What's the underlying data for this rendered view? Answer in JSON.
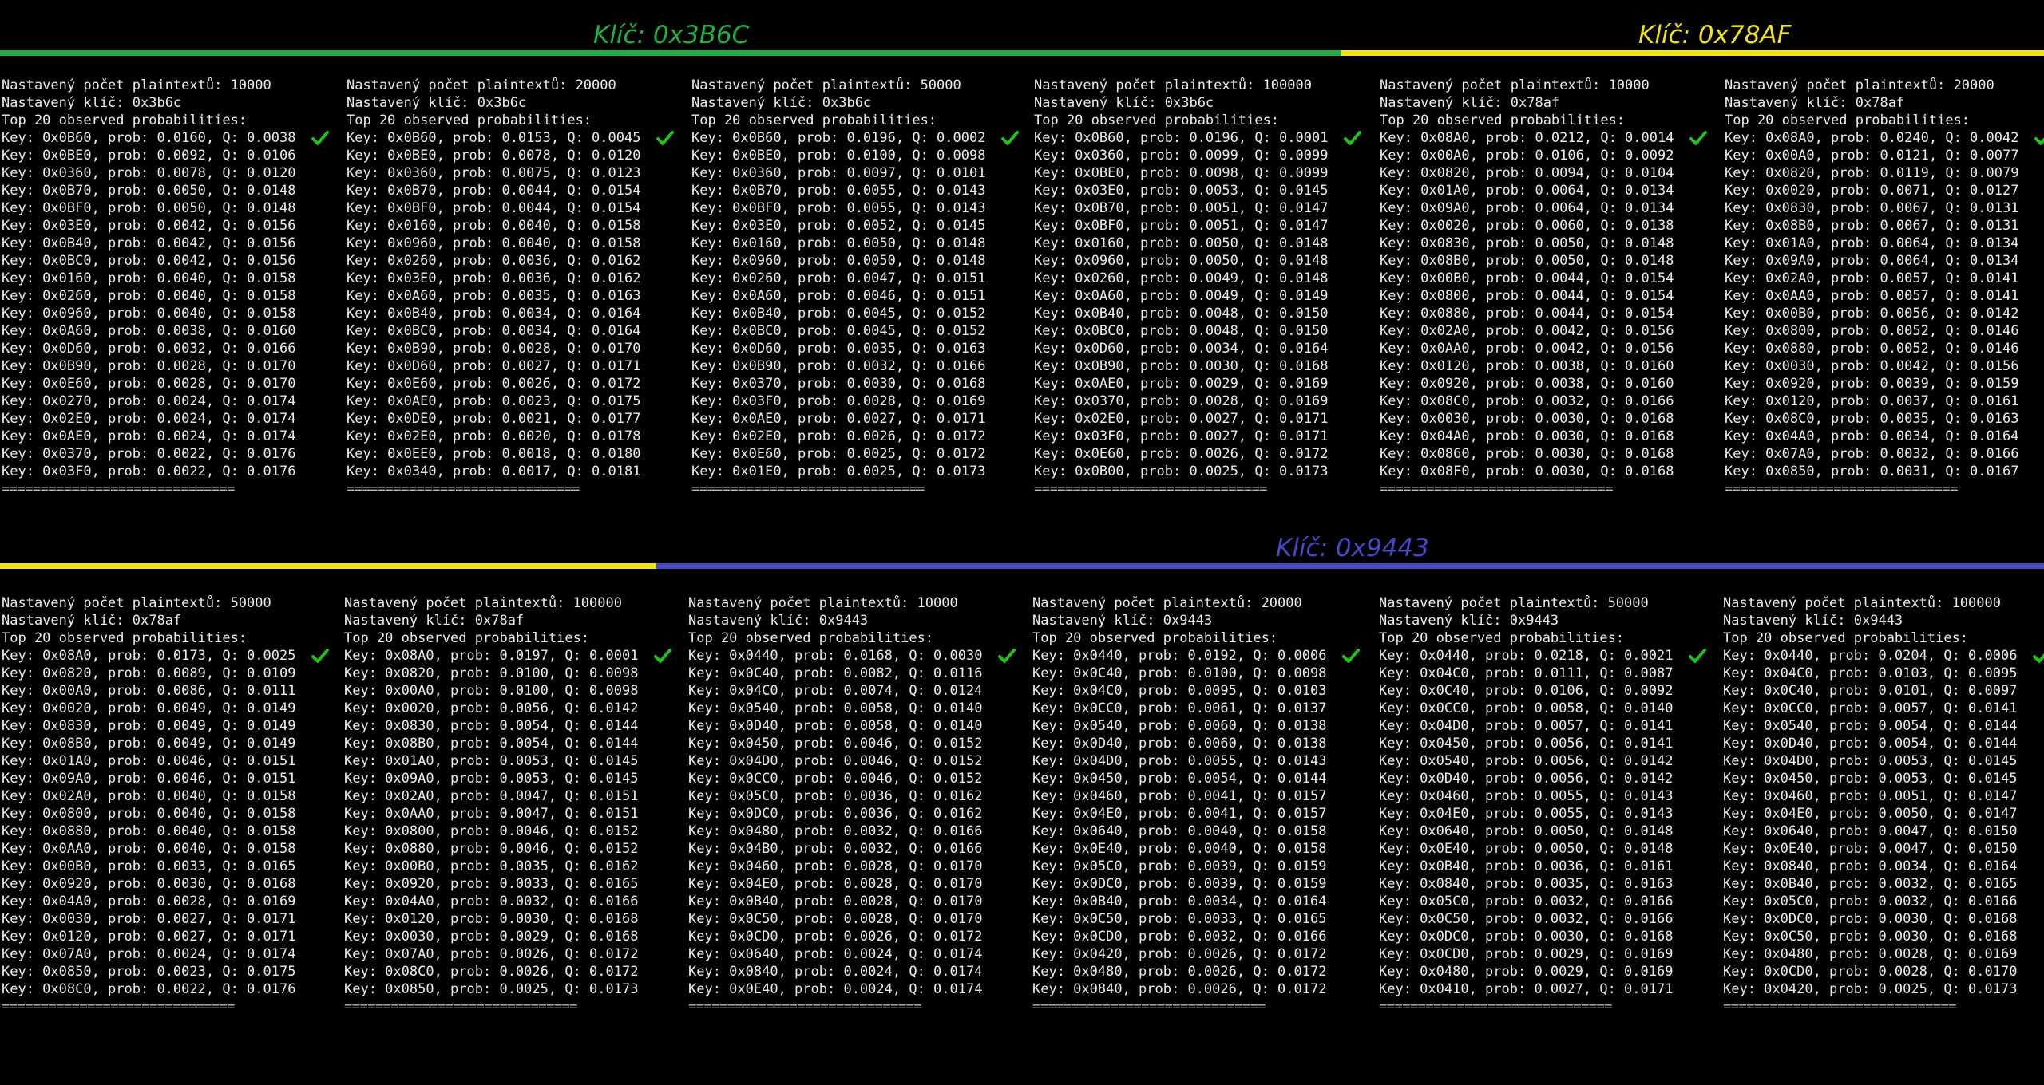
{
  "headers": [
    {
      "label": "Klíč: 0x3B6C",
      "color": "#20b040"
    },
    {
      "label": "Klíč: 0x78AF",
      "color": "#f2e21c"
    },
    {
      "label": "Klíč: 0x9443",
      "color": "#4648c8"
    }
  ],
  "colors": {
    "check": "#22c01a",
    "green": "#20b040",
    "yellow": "#f2e21c",
    "blue": "#4648c8"
  },
  "separator": "==============================",
  "panels": [
    {
      "count_line": "Nastavený počet plaintextů: 10000",
      "key_line": "Nastavený klíč: 0x3b6c",
      "top_line": "Top 20 observed probabilities:",
      "rows": [
        "Key: 0x0B60, prob: 0.0160, Q: 0.0038",
        "Key: 0x0BE0, prob: 0.0092, Q: 0.0106",
        "Key: 0x0360, prob: 0.0078, Q: 0.0120",
        "Key: 0x0B70, prob: 0.0050, Q: 0.0148",
        "Key: 0x0BF0, prob: 0.0050, Q: 0.0148",
        "Key: 0x03E0, prob: 0.0042, Q: 0.0156",
        "Key: 0x0B40, prob: 0.0042, Q: 0.0156",
        "Key: 0x0BC0, prob: 0.0042, Q: 0.0156",
        "Key: 0x0160, prob: 0.0040, Q: 0.0158",
        "Key: 0x0260, prob: 0.0040, Q: 0.0158",
        "Key: 0x0960, prob: 0.0040, Q: 0.0158",
        "Key: 0x0A60, prob: 0.0038, Q: 0.0160",
        "Key: 0x0D60, prob: 0.0032, Q: 0.0166",
        "Key: 0x0B90, prob: 0.0028, Q: 0.0170",
        "Key: 0x0E60, prob: 0.0028, Q: 0.0170",
        "Key: 0x0270, prob: 0.0024, Q: 0.0174",
        "Key: 0x02E0, prob: 0.0024, Q: 0.0174",
        "Key: 0x0AE0, prob: 0.0024, Q: 0.0174",
        "Key: 0x0370, prob: 0.0022, Q: 0.0176",
        "Key: 0x03F0, prob: 0.0022, Q: 0.0176"
      ]
    },
    {
      "count_line": "Nastavený počet plaintextů: 20000",
      "key_line": "Nastavený klíč: 0x3b6c",
      "top_line": "Top 20 observed probabilities:",
      "rows": [
        "Key: 0x0B60, prob: 0.0153, Q: 0.0045",
        "Key: 0x0BE0, prob: 0.0078, Q: 0.0120",
        "Key: 0x0360, prob: 0.0075, Q: 0.0123",
        "Key: 0x0B70, prob: 0.0044, Q: 0.0154",
        "Key: 0x0BF0, prob: 0.0044, Q: 0.0154",
        "Key: 0x0160, prob: 0.0040, Q: 0.0158",
        "Key: 0x0960, prob: 0.0040, Q: 0.0158",
        "Key: 0x0260, prob: 0.0036, Q: 0.0162",
        "Key: 0x03E0, prob: 0.0036, Q: 0.0162",
        "Key: 0x0A60, prob: 0.0035, Q: 0.0163",
        "Key: 0x0B40, prob: 0.0034, Q: 0.0164",
        "Key: 0x0BC0, prob: 0.0034, Q: 0.0164",
        "Key: 0x0B90, prob: 0.0028, Q: 0.0170",
        "Key: 0x0D60, prob: 0.0027, Q: 0.0171",
        "Key: 0x0E60, prob: 0.0026, Q: 0.0172",
        "Key: 0x0AE0, prob: 0.0023, Q: 0.0175",
        "Key: 0x0DE0, prob: 0.0021, Q: 0.0177",
        "Key: 0x02E0, prob: 0.0020, Q: 0.0178",
        "Key: 0x0EE0, prob: 0.0018, Q: 0.0180",
        "Key: 0x0340, prob: 0.0017, Q: 0.0181"
      ]
    },
    {
      "count_line": "Nastavený počet plaintextů: 50000",
      "key_line": "Nastavený klíč: 0x3b6c",
      "top_line": "Top 20 observed probabilities:",
      "rows": [
        "Key: 0x0B60, prob: 0.0196, Q: 0.0002",
        "Key: 0x0BE0, prob: 0.0100, Q: 0.0098",
        "Key: 0x0360, prob: 0.0097, Q: 0.0101",
        "Key: 0x0B70, prob: 0.0055, Q: 0.0143",
        "Key: 0x0BF0, prob: 0.0055, Q: 0.0143",
        "Key: 0x03E0, prob: 0.0052, Q: 0.0145",
        "Key: 0x0160, prob: 0.0050, Q: 0.0148",
        "Key: 0x0960, prob: 0.0050, Q: 0.0148",
        "Key: 0x0260, prob: 0.0047, Q: 0.0151",
        "Key: 0x0A60, prob: 0.0046, Q: 0.0151",
        "Key: 0x0B40, prob: 0.0045, Q: 0.0152",
        "Key: 0x0BC0, prob: 0.0045, Q: 0.0152",
        "Key: 0x0D60, prob: 0.0035, Q: 0.0163",
        "Key: 0x0B90, prob: 0.0032, Q: 0.0166",
        "Key: 0x0370, prob: 0.0030, Q: 0.0168",
        "Key: 0x03F0, prob: 0.0028, Q: 0.0169",
        "Key: 0x0AE0, prob: 0.0027, Q: 0.0171",
        "Key: 0x02E0, prob: 0.0026, Q: 0.0172",
        "Key: 0x0E60, prob: 0.0025, Q: 0.0172",
        "Key: 0x01E0, prob: 0.0025, Q: 0.0173"
      ]
    },
    {
      "count_line": "Nastavený počet plaintextů: 100000",
      "key_line": "Nastavený klíč: 0x3b6c",
      "top_line": "Top 20 observed probabilities:",
      "rows": [
        "Key: 0x0B60, prob: 0.0196, Q: 0.0001",
        "Key: 0x0360, prob: 0.0099, Q: 0.0099",
        "Key: 0x0BE0, prob: 0.0098, Q: 0.0099",
        "Key: 0x03E0, prob: 0.0053, Q: 0.0145",
        "Key: 0x0B70, prob: 0.0051, Q: 0.0147",
        "Key: 0x0BF0, prob: 0.0051, Q: 0.0147",
        "Key: 0x0160, prob: 0.0050, Q: 0.0148",
        "Key: 0x0960, prob: 0.0050, Q: 0.0148",
        "Key: 0x0260, prob: 0.0049, Q: 0.0148",
        "Key: 0x0A60, prob: 0.0049, Q: 0.0149",
        "Key: 0x0B40, prob: 0.0048, Q: 0.0150",
        "Key: 0x0BC0, prob: 0.0048, Q: 0.0150",
        "Key: 0x0D60, prob: 0.0034, Q: 0.0164",
        "Key: 0x0B90, prob: 0.0030, Q: 0.0168",
        "Key: 0x0AE0, prob: 0.0029, Q: 0.0169",
        "Key: 0x0370, prob: 0.0028, Q: 0.0169",
        "Key: 0x02E0, prob: 0.0027, Q: 0.0171",
        "Key: 0x03F0, prob: 0.0027, Q: 0.0171",
        "Key: 0x0E60, prob: 0.0026, Q: 0.0172",
        "Key: 0x0B00, prob: 0.0025, Q: 0.0173"
      ]
    },
    {
      "count_line": "Nastavený počet plaintextů: 10000",
      "key_line": "Nastavený klíč: 0x78af",
      "top_line": "Top 20 observed probabilities:",
      "rows": [
        "Key: 0x08A0, prob: 0.0212, Q: 0.0014",
        "Key: 0x00A0, prob: 0.0106, Q: 0.0092",
        "Key: 0x0820, prob: 0.0094, Q: 0.0104",
        "Key: 0x01A0, prob: 0.0064, Q: 0.0134",
        "Key: 0x09A0, prob: 0.0064, Q: 0.0134",
        "Key: 0x0020, prob: 0.0060, Q: 0.0138",
        "Key: 0x0830, prob: 0.0050, Q: 0.0148",
        "Key: 0x08B0, prob: 0.0050, Q: 0.0148",
        "Key: 0x00B0, prob: 0.0044, Q: 0.0154",
        "Key: 0x0800, prob: 0.0044, Q: 0.0154",
        "Key: 0x0880, prob: 0.0044, Q: 0.0154",
        "Key: 0x02A0, prob: 0.0042, Q: 0.0156",
        "Key: 0x0AA0, prob: 0.0042, Q: 0.0156",
        "Key: 0x0120, prob: 0.0038, Q: 0.0160",
        "Key: 0x0920, prob: 0.0038, Q: 0.0160",
        "Key: 0x08C0, prob: 0.0032, Q: 0.0166",
        "Key: 0x0030, prob: 0.0030, Q: 0.0168",
        "Key: 0x04A0, prob: 0.0030, Q: 0.0168",
        "Key: 0x0860, prob: 0.0030, Q: 0.0168",
        "Key: 0x08F0, prob: 0.0030, Q: 0.0168"
      ]
    },
    {
      "count_line": "Nastavený počet plaintextů: 20000",
      "key_line": "Nastavený klíč: 0x78af",
      "top_line": "Top 20 observed probabilities:",
      "rows": [
        "Key: 0x08A0, prob: 0.0240, Q: 0.0042",
        "Key: 0x00A0, prob: 0.0121, Q: 0.0077",
        "Key: 0x0820, prob: 0.0119, Q: 0.0079",
        "Key: 0x0020, prob: 0.0071, Q: 0.0127",
        "Key: 0x0830, prob: 0.0067, Q: 0.0131",
        "Key: 0x08B0, prob: 0.0067, Q: 0.0131",
        "Key: 0x01A0, prob: 0.0064, Q: 0.0134",
        "Key: 0x09A0, prob: 0.0064, Q: 0.0134",
        "Key: 0x02A0, prob: 0.0057, Q: 0.0141",
        "Key: 0x0AA0, prob: 0.0057, Q: 0.0141",
        "Key: 0x00B0, prob: 0.0056, Q: 0.0142",
        "Key: 0x0800, prob: 0.0052, Q: 0.0146",
        "Key: 0x0880, prob: 0.0052, Q: 0.0146",
        "Key: 0x0030, prob: 0.0042, Q: 0.0156",
        "Key: 0x0920, prob: 0.0039, Q: 0.0159",
        "Key: 0x0120, prob: 0.0037, Q: 0.0161",
        "Key: 0x08C0, prob: 0.0035, Q: 0.0163",
        "Key: 0x04A0, prob: 0.0034, Q: 0.0164",
        "Key: 0x07A0, prob: 0.0032, Q: 0.0166",
        "Key: 0x0850, prob: 0.0031, Q: 0.0167"
      ]
    },
    {
      "count_line": "Nastavený počet plaintextů: 50000",
      "key_line": "Nastavený klíč: 0x78af",
      "top_line": "Top 20 observed probabilities:",
      "rows": [
        "Key: 0x08A0, prob: 0.0173, Q: 0.0025",
        "Key: 0x0820, prob: 0.0089, Q: 0.0109",
        "Key: 0x00A0, prob: 0.0086, Q: 0.0111",
        "Key: 0x0020, prob: 0.0049, Q: 0.0149",
        "Key: 0x0830, prob: 0.0049, Q: 0.0149",
        "Key: 0x08B0, prob: 0.0049, Q: 0.0149",
        "Key: 0x01A0, prob: 0.0046, Q: 0.0151",
        "Key: 0x09A0, prob: 0.0046, Q: 0.0151",
        "Key: 0x02A0, prob: 0.0040, Q: 0.0158",
        "Key: 0x0800, prob: 0.0040, Q: 0.0158",
        "Key: 0x0880, prob: 0.0040, Q: 0.0158",
        "Key: 0x0AA0, prob: 0.0040, Q: 0.0158",
        "Key: 0x00B0, prob: 0.0033, Q: 0.0165",
        "Key: 0x0920, prob: 0.0030, Q: 0.0168",
        "Key: 0x04A0, prob: 0.0028, Q: 0.0169",
        "Key: 0x0030, prob: 0.0027, Q: 0.0171",
        "Key: 0x0120, prob: 0.0027, Q: 0.0171",
        "Key: 0x07A0, prob: 0.0024, Q: 0.0174",
        "Key: 0x0850, prob: 0.0023, Q: 0.0175",
        "Key: 0x08C0, prob: 0.0022, Q: 0.0176"
      ]
    },
    {
      "count_line": "Nastavený počet plaintextů: 100000",
      "key_line": "Nastavený klíč: 0x78af",
      "top_line": "Top 20 observed probabilities:",
      "rows": [
        "Key: 0x08A0, prob: 0.0197, Q: 0.0001",
        "Key: 0x0820, prob: 0.0100, Q: 0.0098",
        "Key: 0x00A0, prob: 0.0100, Q: 0.0098",
        "Key: 0x0020, prob: 0.0056, Q: 0.0142",
        "Key: 0x0830, prob: 0.0054, Q: 0.0144",
        "Key: 0x08B0, prob: 0.0054, Q: 0.0144",
        "Key: 0x01A0, prob: 0.0053, Q: 0.0145",
        "Key: 0x09A0, prob: 0.0053, Q: 0.0145",
        "Key: 0x02A0, prob: 0.0047, Q: 0.0151",
        "Key: 0x0AA0, prob: 0.0047, Q: 0.0151",
        "Key: 0x0800, prob: 0.0046, Q: 0.0152",
        "Key: 0x0880, prob: 0.0046, Q: 0.0152",
        "Key: 0x00B0, prob: 0.0035, Q: 0.0162",
        "Key: 0x0920, prob: 0.0033, Q: 0.0165",
        "Key: 0x04A0, prob: 0.0032, Q: 0.0166",
        "Key: 0x0120, prob: 0.0030, Q: 0.0168",
        "Key: 0x0030, prob: 0.0029, Q: 0.0168",
        "Key: 0x07A0, prob: 0.0026, Q: 0.0172",
        "Key: 0x08C0, prob: 0.0026, Q: 0.0172",
        "Key: 0x0850, prob: 0.0025, Q: 0.0173"
      ]
    },
    {
      "count_line": "Nastavený počet plaintextů: 10000",
      "key_line": "Nastavený klíč: 0x9443",
      "top_line": "Top 20 observed probabilities:",
      "rows": [
        "Key: 0x0440, prob: 0.0168, Q: 0.0030",
        "Key: 0x0C40, prob: 0.0082, Q: 0.0116",
        "Key: 0x04C0, prob: 0.0074, Q: 0.0124",
        "Key: 0x0540, prob: 0.0058, Q: 0.0140",
        "Key: 0x0D40, prob: 0.0058, Q: 0.0140",
        "Key: 0x0450, prob: 0.0046, Q: 0.0152",
        "Key: 0x04D0, prob: 0.0046, Q: 0.0152",
        "Key: 0x0CC0, prob: 0.0046, Q: 0.0152",
        "Key: 0x05C0, prob: 0.0036, Q: 0.0162",
        "Key: 0x0DC0, prob: 0.0036, Q: 0.0162",
        "Key: 0x0480, prob: 0.0032, Q: 0.0166",
        "Key: 0x04B0, prob: 0.0032, Q: 0.0166",
        "Key: 0x0460, prob: 0.0028, Q: 0.0170",
        "Key: 0x04E0, prob: 0.0028, Q: 0.0170",
        "Key: 0x0B40, prob: 0.0028, Q: 0.0170",
        "Key: 0x0C50, prob: 0.0028, Q: 0.0170",
        "Key: 0x0CD0, prob: 0.0026, Q: 0.0172",
        "Key: 0x0640, prob: 0.0024, Q: 0.0174",
        "Key: 0x0840, prob: 0.0024, Q: 0.0174",
        "Key: 0x0E40, prob: 0.0024, Q: 0.0174"
      ]
    },
    {
      "count_line": "Nastavený počet plaintextů: 20000",
      "key_line": "Nastavený klíč: 0x9443",
      "top_line": "Top 20 observed probabilities:",
      "rows": [
        "Key: 0x0440, prob: 0.0192, Q: 0.0006",
        "Key: 0x0C40, prob: 0.0100, Q: 0.0098",
        "Key: 0x04C0, prob: 0.0095, Q: 0.0103",
        "Key: 0x0CC0, prob: 0.0061, Q: 0.0137",
        "Key: 0x0540, prob: 0.0060, Q: 0.0138",
        "Key: 0x0D40, prob: 0.0060, Q: 0.0138",
        "Key: 0x04D0, prob: 0.0055, Q: 0.0143",
        "Key: 0x0450, prob: 0.0054, Q: 0.0144",
        "Key: 0x0460, prob: 0.0041, Q: 0.0157",
        "Key: 0x04E0, prob: 0.0041, Q: 0.0157",
        "Key: 0x0640, prob: 0.0040, Q: 0.0158",
        "Key: 0x0E40, prob: 0.0040, Q: 0.0158",
        "Key: 0x05C0, prob: 0.0039, Q: 0.0159",
        "Key: 0x0DC0, prob: 0.0039, Q: 0.0159",
        "Key: 0x0B40, prob: 0.0034, Q: 0.0164",
        "Key: 0x0C50, prob: 0.0033, Q: 0.0165",
        "Key: 0x0CD0, prob: 0.0032, Q: 0.0166",
        "Key: 0x0420, prob: 0.0026, Q: 0.0172",
        "Key: 0x0480, prob: 0.0026, Q: 0.0172",
        "Key: 0x0840, prob: 0.0026, Q: 0.0172"
      ]
    },
    {
      "count_line": "Nastavený počet plaintextů: 50000",
      "key_line": "Nastavený klíč: 0x9443",
      "top_line": "Top 20 observed probabilities:",
      "rows": [
        "Key: 0x0440, prob: 0.0218, Q: 0.0021",
        "Key: 0x04C0, prob: 0.0111, Q: 0.0087",
        "Key: 0x0C40, prob: 0.0106, Q: 0.0092",
        "Key: 0x0CC0, prob: 0.0058, Q: 0.0140",
        "Key: 0x04D0, prob: 0.0057, Q: 0.0141",
        "Key: 0x0450, prob: 0.0056, Q: 0.0141",
        "Key: 0x0540, prob: 0.0056, Q: 0.0142",
        "Key: 0x0D40, prob: 0.0056, Q: 0.0142",
        "Key: 0x0460, prob: 0.0055, Q: 0.0143",
        "Key: 0x04E0, prob: 0.0055, Q: 0.0143",
        "Key: 0x0640, prob: 0.0050, Q: 0.0148",
        "Key: 0x0E40, prob: 0.0050, Q: 0.0148",
        "Key: 0x0B40, prob: 0.0036, Q: 0.0161",
        "Key: 0x0840, prob: 0.0035, Q: 0.0163",
        "Key: 0x05C0, prob: 0.0032, Q: 0.0166",
        "Key: 0x0C50, prob: 0.0032, Q: 0.0166",
        "Key: 0x0DC0, prob: 0.0030, Q: 0.0168",
        "Key: 0x0CD0, prob: 0.0029, Q: 0.0169",
        "Key: 0x0480, prob: 0.0029, Q: 0.0169",
        "Key: 0x0410, prob: 0.0027, Q: 0.0171"
      ]
    },
    {
      "count_line": "Nastavený počet plaintextů: 100000",
      "key_line": "Nastavený klíč: 0x9443",
      "top_line": "Top 20 observed probabilities:",
      "rows": [
        "Key: 0x0440, prob: 0.0204, Q: 0.0006",
        "Key: 0x04C0, prob: 0.0103, Q: 0.0095",
        "Key: 0x0C40, prob: 0.0101, Q: 0.0097",
        "Key: 0x0CC0, prob: 0.0057, Q: 0.0141",
        "Key: 0x0540, prob: 0.0054, Q: 0.0144",
        "Key: 0x0D40, prob: 0.0054, Q: 0.0144",
        "Key: 0x04D0, prob: 0.0053, Q: 0.0145",
        "Key: 0x0450, prob: 0.0053, Q: 0.0145",
        "Key: 0x0460, prob: 0.0051, Q: 0.0147",
        "Key: 0x04E0, prob: 0.0050, Q: 0.0147",
        "Key: 0x0640, prob: 0.0047, Q: 0.0150",
        "Key: 0x0E40, prob: 0.0047, Q: 0.0150",
        "Key: 0x0840, prob: 0.0034, Q: 0.0164",
        "Key: 0x0B40, prob: 0.0032, Q: 0.0165",
        "Key: 0x05C0, prob: 0.0032, Q: 0.0166",
        "Key: 0x0DC0, prob: 0.0030, Q: 0.0168",
        "Key: 0x0C50, prob: 0.0030, Q: 0.0168",
        "Key: 0x0480, prob: 0.0028, Q: 0.0169",
        "Key: 0x0CD0, prob: 0.0028, Q: 0.0170",
        "Key: 0x0420, prob: 0.0025, Q: 0.0173"
      ]
    }
  ]
}
